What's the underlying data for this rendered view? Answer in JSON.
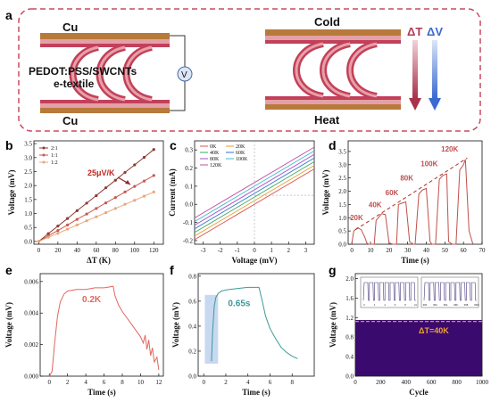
{
  "panel_a": {
    "label": "a",
    "electrode_top": "Cu",
    "electrode_bottom": "Cu",
    "material_line1": "PEDOT:PSS/SWCNTs",
    "material_line2": "e-textile",
    "voltmeter": "V",
    "cold": "Cold",
    "heat": "Heat",
    "delta_t": "ΔT",
    "delta_v": "ΔV"
  },
  "chart_data": [
    {
      "id": "b",
      "label": "b",
      "type": "scatter",
      "xlabel": "ΔT (K)",
      "ylabel": "Voltage (mV)",
      "xlim": [
        -5,
        130
      ],
      "ylim": [
        -0.1,
        3.6
      ],
      "xticks": [
        0,
        20,
        40,
        60,
        80,
        100,
        120
      ],
      "yticks": [
        0.0,
        0.5,
        1.0,
        1.5,
        2.0,
        2.5,
        3.0,
        3.5
      ],
      "x": [
        0,
        10,
        20,
        30,
        40,
        50,
        60,
        70,
        80,
        90,
        100,
        110,
        120
      ],
      "series": [
        {
          "name": "2:1",
          "color": "#8b3a32",
          "values": [
            0.0,
            0.28,
            0.55,
            0.82,
            1.1,
            1.37,
            1.64,
            1.92,
            2.19,
            2.47,
            2.74,
            3.01,
            3.29
          ]
        },
        {
          "name": "1:1",
          "color": "#c85a4e",
          "values": [
            0.0,
            0.2,
            0.39,
            0.59,
            0.79,
            0.98,
            1.18,
            1.38,
            1.57,
            1.77,
            1.97,
            2.16,
            2.36
          ]
        },
        {
          "name": "1:2",
          "color": "#e8a87c",
          "values": [
            0.0,
            0.15,
            0.29,
            0.44,
            0.59,
            0.74,
            0.88,
            1.03,
            1.18,
            1.33,
            1.47,
            1.62,
            1.77
          ]
        }
      ],
      "annotation": "25μV/K",
      "grid": false,
      "legend": "top-left"
    },
    {
      "id": "c",
      "label": "c",
      "type": "line",
      "xlabel": "Voltage (mV)",
      "ylabel": "Current (mA)",
      "xlim": [
        -3.5,
        3.5
      ],
      "ylim": [
        -0.22,
        0.35
      ],
      "xticks": [
        -3,
        -2,
        -1,
        0,
        1,
        2,
        3
      ],
      "yticks": [
        -0.2,
        -0.1,
        0.0,
        0.1,
        0.2,
        0.3
      ],
      "series": [
        {
          "name": "0K",
          "color": "#e05050",
          "x": [
            -3.5,
            3.5
          ],
          "values": [
            -0.195,
            0.195
          ]
        },
        {
          "name": "20K",
          "color": "#e0a030",
          "x": [
            -3.5,
            3.5
          ],
          "values": [
            -0.175,
            0.215
          ]
        },
        {
          "name": "40K",
          "color": "#3aa860",
          "x": [
            -3.5,
            3.5
          ],
          "values": [
            -0.155,
            0.235
          ]
        },
        {
          "name": "60K",
          "color": "#3070d0",
          "x": [
            -3.5,
            3.5
          ],
          "values": [
            -0.135,
            0.255
          ]
        },
        {
          "name": "80K",
          "color": "#a050c0",
          "x": [
            -3.5,
            3.5
          ],
          "values": [
            -0.115,
            0.275
          ]
        },
        {
          "name": "100K",
          "color": "#40b8c8",
          "x": [
            -3.5,
            3.5
          ],
          "values": [
            -0.095,
            0.295
          ]
        },
        {
          "name": "120K",
          "color": "#c050a0",
          "x": [
            -3.5,
            3.5
          ],
          "values": [
            -0.075,
            0.315
          ]
        }
      ],
      "grid": false,
      "legend": "top-left"
    },
    {
      "id": "d",
      "label": "d",
      "type": "line",
      "xlabel": "Time (s)",
      "ylabel": "Voltage (mV)",
      "xlim": [
        -2,
        70
      ],
      "ylim": [
        0,
        3.9
      ],
      "xticks": [
        0,
        10,
        20,
        30,
        40,
        50,
        60,
        70
      ],
      "yticks": [
        0.0,
        0.5,
        1.0,
        1.5,
        2.0,
        2.5,
        3.0,
        3.5
      ],
      "series": [
        {
          "name": "",
          "color": "#c0504a",
          "x": [
            0,
            1,
            3,
            5,
            7,
            8,
            9,
            12,
            13,
            16,
            18,
            20,
            22,
            24,
            25,
            27,
            29,
            31,
            33,
            34,
            36,
            38,
            40,
            42,
            43,
            45,
            47,
            49,
            51,
            52,
            54,
            56,
            58,
            60,
            61,
            63,
            65
          ],
          "values": [
            0.05,
            0.5,
            0.62,
            0.55,
            0.25,
            0.05,
            0.0,
            0.0,
            0.9,
            1.15,
            1.12,
            0.05,
            0.0,
            0.0,
            1.5,
            1.55,
            1.6,
            0.1,
            0.0,
            0.0,
            1.9,
            2.05,
            2.1,
            0.1,
            0.0,
            0.0,
            2.45,
            2.6,
            2.65,
            0.1,
            0.0,
            0.0,
            2.8,
            3.0,
            3.2,
            0.5,
            0.02
          ]
        }
      ],
      "annotations": [
        "20K",
        "40K",
        "60K",
        "80K",
        "100K",
        "120K"
      ],
      "grid": false
    },
    {
      "id": "e",
      "label": "e",
      "type": "line",
      "xlabel": "Time (s)",
      "ylabel": "Voltage (mV)",
      "xlim": [
        -1,
        12.5
      ],
      "ylim": [
        0,
        0.0065
      ],
      "xticks": [
        0,
        2,
        4,
        6,
        8,
        10,
        12
      ],
      "yticks": [
        0.0,
        0.002,
        0.004,
        0.006
      ],
      "ytick_labels": [
        "0.000",
        "0.002",
        "0.004",
        "0.006"
      ],
      "series": [
        {
          "name": "",
          "color": "#e0675f",
          "x": [
            0,
            0.3,
            0.6,
            0.9,
            1.2,
            1.6,
            2.0,
            3.0,
            4.0,
            5.0,
            6.0,
            7.0,
            7.2,
            7.6,
            8.0,
            8.5,
            9.0,
            9.5,
            10.0,
            10.3,
            10.5,
            10.7,
            10.9,
            11.1,
            11.3,
            11.5,
            11.8,
            12.0
          ],
          "values": [
            0.0,
            0.0003,
            0.0022,
            0.0038,
            0.0047,
            0.0052,
            0.0054,
            0.0055,
            0.0055,
            0.0056,
            0.0056,
            0.0057,
            0.0051,
            0.0045,
            0.0041,
            0.0037,
            0.0033,
            0.0029,
            0.0025,
            0.0021,
            0.0026,
            0.0017,
            0.0023,
            0.0013,
            0.0018,
            0.0009,
            0.0012,
            0.0004
          ]
        }
      ],
      "annotation": "0.2K",
      "grid": false
    },
    {
      "id": "f",
      "label": "f",
      "type": "line",
      "xlabel": "Time (s)",
      "ylabel": "Voltage (mV)",
      "xlim": [
        -0.5,
        10
      ],
      "ylim": [
        0,
        0.82
      ],
      "xticks": [
        0,
        2,
        4,
        6,
        8
      ],
      "yticks": [
        0.0,
        0.2,
        0.4,
        0.6,
        0.8
      ],
      "series": [
        {
          "name": "",
          "color": "#3a9a9a",
          "x": [
            0.7,
            0.8,
            0.95,
            1.1,
            1.3,
            1.6,
            2.0,
            3.0,
            4.0,
            5.0,
            5.3,
            5.6,
            6.0,
            6.5,
            7.0,
            7.5,
            8.0,
            8.5
          ],
          "values": [
            0.12,
            0.35,
            0.56,
            0.63,
            0.66,
            0.68,
            0.69,
            0.7,
            0.71,
            0.71,
            0.6,
            0.48,
            0.38,
            0.3,
            0.23,
            0.19,
            0.16,
            0.14
          ]
        }
      ],
      "highlight_x": [
        0.1,
        1.3
      ],
      "annotation": "0.65s",
      "grid": false
    },
    {
      "id": "g",
      "label": "g",
      "type": "area",
      "xlabel": "Cycle",
      "ylabel": "Voltage (mV)",
      "xlim": [
        0,
        1000
      ],
      "ylim": [
        0,
        2.1
      ],
      "xticks": [
        0,
        200,
        400,
        600,
        800,
        1000
      ],
      "yticks": [
        0.0,
        0.4,
        0.8,
        1.2,
        1.6,
        2.0
      ],
      "series": [
        {
          "name": "",
          "color": "#3a0a6e",
          "x": [
            0,
            1000
          ],
          "values": [
            1.15,
            1.15
          ]
        }
      ],
      "reference_line": 1.12,
      "inset_left": {
        "xticks": [
          0,
          2,
          4,
          6,
          8,
          10
        ]
      },
      "inset_right": {
        "xticks": [
          990,
          992,
          994,
          996,
          998,
          1000
        ]
      },
      "annotation": "ΔT=40K",
      "grid": false
    }
  ]
}
